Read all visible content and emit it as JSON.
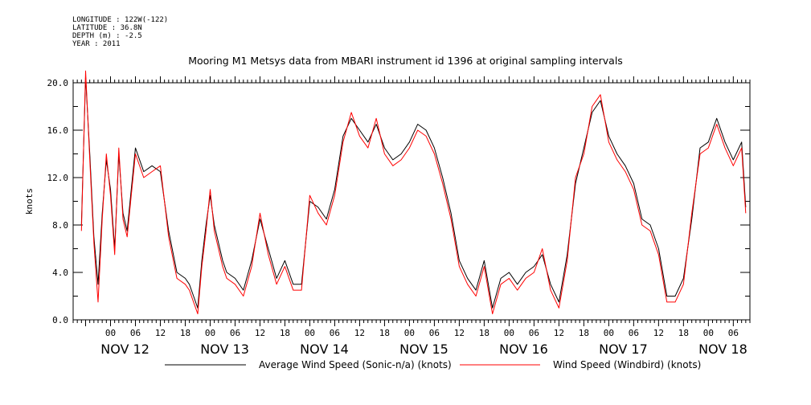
{
  "meta": {
    "longitude": "LONGITUDE : 122W(-122)",
    "latitude": "LATITUDE : 36.8N",
    "depth": "DEPTH (m) : -2.5",
    "year": "YEAR : 2011"
  },
  "chart_data": {
    "type": "line",
    "title": "Mooring M1 Metsys data from MBARI instrument id 1396 at original sampling intervals",
    "ylabel": "knots",
    "xlabel": "",
    "ylim": [
      0,
      20.0
    ],
    "y_ticks": [
      "0.0",
      "4.0",
      "8.0",
      "12.0",
      "16.0",
      "20.0"
    ],
    "x_range_hours": [
      -9,
      154
    ],
    "hour_tick_labels": [
      "00",
      "06",
      "12",
      "18"
    ],
    "day_labels": [
      "NOV 12",
      "NOV 13",
      "NOV 14",
      "NOV 15",
      "NOV 16",
      "NOV 17",
      "NOV 18"
    ],
    "grid": false,
    "legend_placement": "bottom",
    "series": [
      {
        "name": "Average Wind Speed (Sonic-n/a) (knots)",
        "color": "#000000",
        "x_hours": [
          -7,
          -6,
          -5,
          -4,
          -3,
          -2,
          -1,
          0,
          1,
          2,
          3,
          4,
          5,
          6,
          8,
          10,
          12,
          14,
          16,
          18,
          19,
          20,
          21,
          22,
          23,
          24,
          25,
          26,
          27,
          28,
          30,
          32,
          34,
          36,
          38,
          40,
          42,
          44,
          46,
          48,
          50,
          52,
          54,
          56,
          58,
          60,
          62,
          64,
          66,
          68,
          70,
          72,
          74,
          76,
          78,
          80,
          82,
          84,
          86,
          88,
          90,
          92,
          94,
          96,
          98,
          100,
          102,
          104,
          106,
          108,
          110,
          112,
          114,
          116,
          118,
          120,
          122,
          124,
          126,
          128,
          130,
          132,
          134,
          136,
          138,
          140,
          142,
          144,
          146,
          148,
          150,
          152,
          153
        ],
        "values": [
          8.0,
          20.5,
          14.0,
          7.0,
          3.0,
          9.0,
          13.5,
          11.0,
          6.0,
          14.0,
          9.0,
          7.5,
          11.0,
          14.5,
          12.5,
          13.0,
          12.5,
          7.5,
          4.0,
          3.5,
          3.0,
          2.0,
          1.0,
          5.0,
          8.0,
          10.5,
          8.0,
          6.5,
          5.0,
          4.0,
          3.5,
          2.5,
          5.0,
          8.5,
          6.0,
          3.5,
          5.0,
          3.0,
          3.0,
          10.0,
          9.5,
          8.5,
          11.0,
          15.5,
          17.0,
          16.0,
          15.0,
          16.5,
          14.5,
          13.5,
          14.0,
          15.0,
          16.5,
          16.0,
          14.5,
          12.0,
          9.0,
          5.0,
          3.5,
          2.5,
          5.0,
          1.0,
          3.5,
          4.0,
          3.0,
          4.0,
          4.5,
          5.5,
          3.0,
          1.5,
          5.5,
          11.5,
          14.5,
          17.5,
          18.5,
          15.5,
          14.0,
          13.0,
          11.5,
          8.5,
          8.0,
          6.0,
          2.0,
          2.0,
          3.5,
          8.5,
          14.5,
          15.0,
          17.0,
          15.0,
          13.5,
          15.0,
          9.5
        ]
      },
      {
        "name": "Wind Speed (Windbird) (knots)",
        "color": "#ff0000",
        "x_hours": [
          -7,
          -6,
          -5,
          -4,
          -3,
          -2,
          -1,
          0,
          1,
          2,
          3,
          4,
          5,
          6,
          8,
          10,
          12,
          14,
          16,
          18,
          19,
          20,
          21,
          22,
          23,
          24,
          25,
          26,
          27,
          28,
          30,
          32,
          34,
          36,
          38,
          40,
          42,
          44,
          46,
          48,
          50,
          52,
          54,
          56,
          58,
          60,
          62,
          64,
          66,
          68,
          70,
          72,
          74,
          76,
          78,
          80,
          82,
          84,
          86,
          88,
          90,
          92,
          94,
          96,
          98,
          100,
          102,
          104,
          106,
          108,
          110,
          112,
          114,
          116,
          118,
          120,
          122,
          124,
          126,
          128,
          130,
          132,
          134,
          136,
          138,
          140,
          142,
          144,
          146,
          148,
          150,
          152,
          153
        ],
        "values": [
          7.5,
          21.0,
          13.5,
          6.5,
          1.5,
          8.5,
          14.0,
          10.5,
          5.5,
          14.5,
          8.5,
          7.0,
          10.5,
          14.0,
          12.0,
          12.5,
          13.0,
          7.0,
          3.5,
          3.0,
          2.5,
          1.5,
          0.5,
          4.5,
          7.5,
          11.0,
          7.5,
          6.0,
          4.5,
          3.5,
          3.0,
          2.0,
          4.5,
          9.0,
          5.5,
          3.0,
          4.5,
          2.5,
          2.5,
          10.5,
          9.0,
          8.0,
          10.5,
          15.0,
          17.5,
          15.5,
          14.5,
          17.0,
          14.0,
          13.0,
          13.5,
          14.5,
          16.0,
          15.5,
          14.0,
          11.5,
          8.5,
          4.5,
          3.0,
          2.0,
          4.5,
          0.5,
          3.0,
          3.5,
          2.5,
          3.5,
          4.0,
          6.0,
          2.5,
          1.0,
          5.0,
          12.0,
          14.0,
          18.0,
          19.0,
          15.0,
          13.5,
          12.5,
          11.0,
          8.0,
          7.5,
          5.5,
          1.5,
          1.5,
          3.0,
          9.0,
          14.0,
          14.5,
          16.5,
          14.5,
          13.0,
          14.5,
          9.0
        ]
      }
    ]
  },
  "chart_extra": {
    "series_pairs_per_hour": "see series",
    "_unused": ""
  }
}
